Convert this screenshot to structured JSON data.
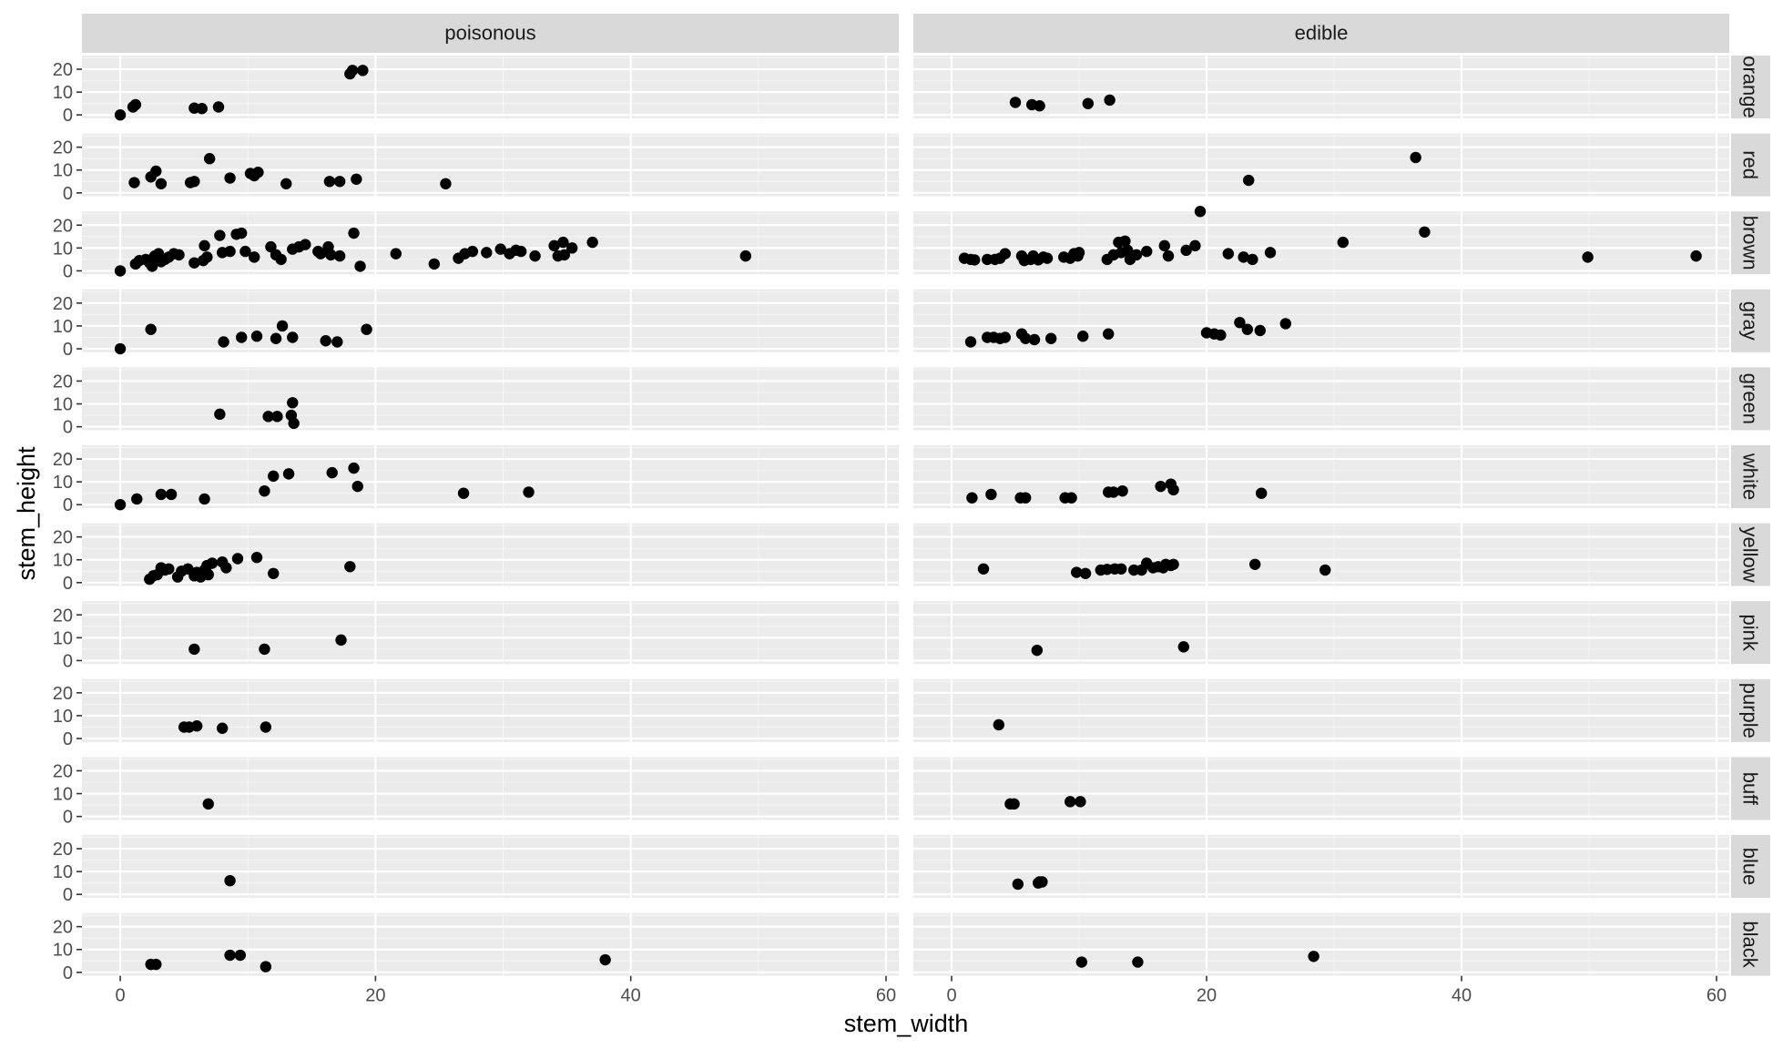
{
  "chart_data": {
    "type": "scatter",
    "facet_cols": [
      "poisonous",
      "edible"
    ],
    "facet_rows": [
      "orange",
      "red",
      "brown",
      "gray",
      "green",
      "white",
      "yellow",
      "pink",
      "purple",
      "buff",
      "blue",
      "black"
    ],
    "xlabel": "stem_width",
    "ylabel": "stem_height",
    "xlim": [
      -3,
      61
    ],
    "ylim": [
      -1.5,
      26
    ],
    "x_ticks": [
      0,
      20,
      40,
      60
    ],
    "y_ticks": [
      0,
      10,
      20
    ],
    "grid": true,
    "colors": {
      "panel_bg": "#ebebeb",
      "strip_bg": "#d9d9d9",
      "grid_major": "#ffffff",
      "point": "#000000"
    },
    "panels": [
      {
        "col": "poisonous",
        "row": "orange",
        "points": [
          [
            0,
            0
          ],
          [
            1,
            3.5
          ],
          [
            1.2,
            4.5
          ],
          [
            5.8,
            3
          ],
          [
            6.4,
            2.8
          ],
          [
            7.7,
            3.5
          ],
          [
            18,
            18
          ],
          [
            18.2,
            19.5
          ],
          [
            19,
            19.5
          ]
        ]
      },
      {
        "col": "edible",
        "row": "orange",
        "points": [
          [
            5,
            5.5
          ],
          [
            6.3,
            4.5
          ],
          [
            6.9,
            4
          ],
          [
            10.7,
            5
          ],
          [
            12.4,
            6.5
          ]
        ]
      },
      {
        "col": "poisonous",
        "row": "red",
        "points": [
          [
            1.1,
            4.5
          ],
          [
            2.4,
            7
          ],
          [
            2.8,
            9.5
          ],
          [
            3.2,
            4
          ],
          [
            5.5,
            4.5
          ],
          [
            5.8,
            5
          ],
          [
            7,
            15
          ],
          [
            8.6,
            6.5
          ],
          [
            10.2,
            8.5
          ],
          [
            10.5,
            7.5
          ],
          [
            10.8,
            9
          ],
          [
            13,
            4
          ],
          [
            16.4,
            5
          ],
          [
            17.2,
            5
          ],
          [
            18.5,
            6
          ],
          [
            25.5,
            4
          ]
        ]
      },
      {
        "col": "edible",
        "row": "red",
        "points": [
          [
            23.3,
            5.5
          ],
          [
            36.4,
            15.5
          ]
        ]
      },
      {
        "col": "poisonous",
        "row": "brown",
        "points": [
          [
            0,
            0
          ],
          [
            1.2,
            3
          ],
          [
            1.5,
            4.5
          ],
          [
            2,
            5
          ],
          [
            2.3,
            3.5
          ],
          [
            2.5,
            2
          ],
          [
            2.7,
            6.5
          ],
          [
            3,
            7.5
          ],
          [
            3.2,
            4
          ],
          [
            3.5,
            5
          ],
          [
            3.8,
            6
          ],
          [
            4.2,
            7.5
          ],
          [
            4.6,
            7
          ],
          [
            5.8,
            3.5
          ],
          [
            6.5,
            4.5
          ],
          [
            6.6,
            11
          ],
          [
            6.8,
            6
          ],
          [
            7.8,
            15.5
          ],
          [
            8,
            8
          ],
          [
            8.6,
            8.5
          ],
          [
            9.1,
            16
          ],
          [
            9.5,
            16.5
          ],
          [
            9.8,
            8.5
          ],
          [
            10.5,
            6
          ],
          [
            11.8,
            10.5
          ],
          [
            12.2,
            7
          ],
          [
            12.6,
            5
          ],
          [
            13.5,
            9.5
          ],
          [
            14,
            10.5
          ],
          [
            14.5,
            11.5
          ],
          [
            15.5,
            8.5
          ],
          [
            15.7,
            7.5
          ],
          [
            16.3,
            10.5
          ],
          [
            16.5,
            7
          ],
          [
            17.2,
            6.5
          ],
          [
            18.3,
            16.5
          ],
          [
            18.8,
            2
          ],
          [
            21.6,
            7.5
          ],
          [
            24.6,
            3
          ],
          [
            26.5,
            5.5
          ],
          [
            27,
            7.5
          ],
          [
            27.6,
            8.5
          ],
          [
            28.7,
            8
          ],
          [
            29.8,
            9.5
          ],
          [
            30.5,
            7.5
          ],
          [
            31,
            9
          ],
          [
            31.4,
            8.5
          ],
          [
            32.5,
            6.5
          ],
          [
            34,
            11
          ],
          [
            34.3,
            6.5
          ],
          [
            34.7,
            12.5
          ],
          [
            34.8,
            7
          ],
          [
            35.4,
            10
          ],
          [
            37,
            12.5
          ],
          [
            49,
            6.5
          ]
        ]
      },
      {
        "col": "edible",
        "row": "brown",
        "points": [
          [
            1,
            5.5
          ],
          [
            1.5,
            5
          ],
          [
            1.8,
            4.8
          ],
          [
            2.8,
            5
          ],
          [
            3.4,
            5
          ],
          [
            3.8,
            5.5
          ],
          [
            4.2,
            7.5
          ],
          [
            5.5,
            6.5
          ],
          [
            5.7,
            4.5
          ],
          [
            6.2,
            5
          ],
          [
            6.4,
            6.5
          ],
          [
            6.8,
            4.8
          ],
          [
            7.2,
            6
          ],
          [
            7.5,
            5.5
          ],
          [
            8.8,
            6
          ],
          [
            9.3,
            5.5
          ],
          [
            9.6,
            7.5
          ],
          [
            9.9,
            6.5
          ],
          [
            10,
            8
          ],
          [
            12.2,
            5
          ],
          [
            12.7,
            7
          ],
          [
            13.1,
            12.5
          ],
          [
            13.3,
            8
          ],
          [
            13.6,
            13
          ],
          [
            13.8,
            9
          ],
          [
            14,
            5
          ],
          [
            14.5,
            7
          ],
          [
            15.3,
            8.5
          ],
          [
            16.7,
            11
          ],
          [
            17,
            6.5
          ],
          [
            18.4,
            9
          ],
          [
            19.1,
            11
          ],
          [
            19.5,
            26
          ],
          [
            21.7,
            7.5
          ],
          [
            22.9,
            6
          ],
          [
            23.6,
            5
          ],
          [
            25,
            8
          ],
          [
            30.7,
            12.5
          ],
          [
            37.1,
            17
          ],
          [
            49.9,
            6
          ],
          [
            58.4,
            6.5
          ]
        ]
      },
      {
        "col": "poisonous",
        "row": "gray",
        "points": [
          [
            0,
            0
          ],
          [
            2.4,
            8.5
          ],
          [
            8.1,
            3
          ],
          [
            9.5,
            5
          ],
          [
            10.7,
            5.5
          ],
          [
            12.2,
            4.5
          ],
          [
            12.7,
            10
          ],
          [
            13.5,
            5
          ],
          [
            16.1,
            3.5
          ],
          [
            17,
            3
          ],
          [
            19.3,
            8.5
          ]
        ]
      },
      {
        "col": "edible",
        "row": "gray",
        "points": [
          [
            1.5,
            3
          ],
          [
            2.8,
            5
          ],
          [
            3.3,
            5
          ],
          [
            3.8,
            4.5
          ],
          [
            4.2,
            5
          ],
          [
            5.5,
            6.5
          ],
          [
            5.8,
            4.5
          ],
          [
            6.5,
            4
          ],
          [
            7.8,
            4.5
          ],
          [
            10.3,
            5.5
          ],
          [
            12.3,
            6.5
          ],
          [
            20,
            7
          ],
          [
            20.6,
            6.5
          ],
          [
            21.1,
            6
          ],
          [
            22.6,
            11.5
          ],
          [
            23.2,
            8.5
          ],
          [
            24.2,
            8
          ],
          [
            26.2,
            11
          ]
        ]
      },
      {
        "col": "poisonous",
        "row": "green",
        "points": [
          [
            7.8,
            5.5
          ],
          [
            11.6,
            4.5
          ],
          [
            12.3,
            4.5
          ],
          [
            13.4,
            5
          ],
          [
            13.5,
            10.5
          ],
          [
            13.6,
            1.5
          ]
        ]
      },
      {
        "col": "edible",
        "row": "green",
        "points": []
      },
      {
        "col": "poisonous",
        "row": "white",
        "points": [
          [
            0,
            0
          ],
          [
            1.3,
            2.5
          ],
          [
            3.2,
            4.5
          ],
          [
            4,
            4.5
          ],
          [
            6.6,
            2.5
          ],
          [
            11.3,
            6
          ],
          [
            12,
            12.5
          ],
          [
            13.2,
            13.5
          ],
          [
            16.6,
            14
          ],
          [
            18.3,
            16
          ],
          [
            18.6,
            8
          ],
          [
            26.9,
            5
          ],
          [
            32,
            5.5
          ]
        ]
      },
      {
        "col": "edible",
        "row": "white",
        "points": [
          [
            1.6,
            3
          ],
          [
            3.1,
            4.5
          ],
          [
            5.4,
            3
          ],
          [
            5.8,
            3
          ],
          [
            8.9,
            3
          ],
          [
            9.4,
            3
          ],
          [
            12.3,
            5.5
          ],
          [
            12.7,
            5.5
          ],
          [
            13.4,
            6
          ],
          [
            16.4,
            8
          ],
          [
            17.2,
            9
          ],
          [
            17.4,
            6.5
          ],
          [
            24.3,
            5
          ]
        ]
      },
      {
        "col": "poisonous",
        "row": "yellow",
        "points": [
          [
            2.3,
            1.5
          ],
          [
            2.6,
            3
          ],
          [
            2.9,
            3.5
          ],
          [
            3.2,
            6.5
          ],
          [
            3.5,
            5.5
          ],
          [
            3.8,
            6
          ],
          [
            4.5,
            2.5
          ],
          [
            4.8,
            5
          ],
          [
            5.3,
            6
          ],
          [
            5.8,
            3
          ],
          [
            6,
            4.5
          ],
          [
            6.3,
            2.5
          ],
          [
            6.6,
            5.5
          ],
          [
            6.8,
            7.5
          ],
          [
            6.9,
            3.5
          ],
          [
            7.2,
            8.5
          ],
          [
            8,
            9
          ],
          [
            8.3,
            6.5
          ],
          [
            9.2,
            10.5
          ],
          [
            10.7,
            11
          ],
          [
            12,
            4
          ],
          [
            18,
            7
          ]
        ]
      },
      {
        "col": "edible",
        "row": "yellow",
        "points": [
          [
            2.5,
            6
          ],
          [
            9.8,
            4.5
          ],
          [
            10.5,
            4
          ],
          [
            11.7,
            5.5
          ],
          [
            12.2,
            5.8
          ],
          [
            12.8,
            6
          ],
          [
            13.3,
            6
          ],
          [
            14.3,
            5.5
          ],
          [
            14.9,
            5.5
          ],
          [
            15.3,
            8.5
          ],
          [
            15.8,
            6.5
          ],
          [
            16.2,
            7
          ],
          [
            16.6,
            6.5
          ],
          [
            16.8,
            8
          ],
          [
            17.2,
            7.5
          ],
          [
            17.4,
            8
          ],
          [
            23.8,
            8
          ],
          [
            29.3,
            5.5
          ]
        ]
      },
      {
        "col": "poisonous",
        "row": "pink",
        "points": [
          [
            5.8,
            5
          ],
          [
            11.3,
            5
          ],
          [
            17.3,
            9
          ]
        ]
      },
      {
        "col": "edible",
        "row": "pink",
        "points": [
          [
            6.7,
            4.5
          ],
          [
            18.2,
            6
          ]
        ]
      },
      {
        "col": "poisonous",
        "row": "purple",
        "points": [
          [
            5,
            5
          ],
          [
            5.4,
            5
          ],
          [
            6,
            5.5
          ],
          [
            8,
            4.5
          ],
          [
            11.4,
            5
          ]
        ]
      },
      {
        "col": "edible",
        "row": "purple",
        "points": [
          [
            3.7,
            6
          ]
        ]
      },
      {
        "col": "poisonous",
        "row": "buff",
        "points": [
          [
            6.9,
            5.5
          ]
        ]
      },
      {
        "col": "edible",
        "row": "buff",
        "points": [
          [
            4.6,
            5.5
          ],
          [
            4.9,
            5.5
          ],
          [
            9.3,
            6.5
          ],
          [
            10.1,
            6.5
          ]
        ]
      },
      {
        "col": "poisonous",
        "row": "blue",
        "points": [
          [
            8.6,
            6
          ]
        ]
      },
      {
        "col": "edible",
        "row": "blue",
        "points": [
          [
            5.2,
            4.5
          ],
          [
            6.8,
            5
          ],
          [
            6.9,
            5.5
          ],
          [
            7.1,
            5.5
          ]
        ]
      },
      {
        "col": "poisonous",
        "row": "black",
        "points": [
          [
            2.4,
            3.5
          ],
          [
            2.8,
            3.5
          ],
          [
            8.6,
            7.5
          ],
          [
            9.4,
            7.5
          ],
          [
            11.4,
            2.5
          ],
          [
            38,
            5.5
          ]
        ]
      },
      {
        "col": "edible",
        "row": "black",
        "points": [
          [
            10.2,
            4.5
          ],
          [
            14.6,
            4.5
          ],
          [
            28.4,
            7
          ]
        ]
      }
    ]
  }
}
